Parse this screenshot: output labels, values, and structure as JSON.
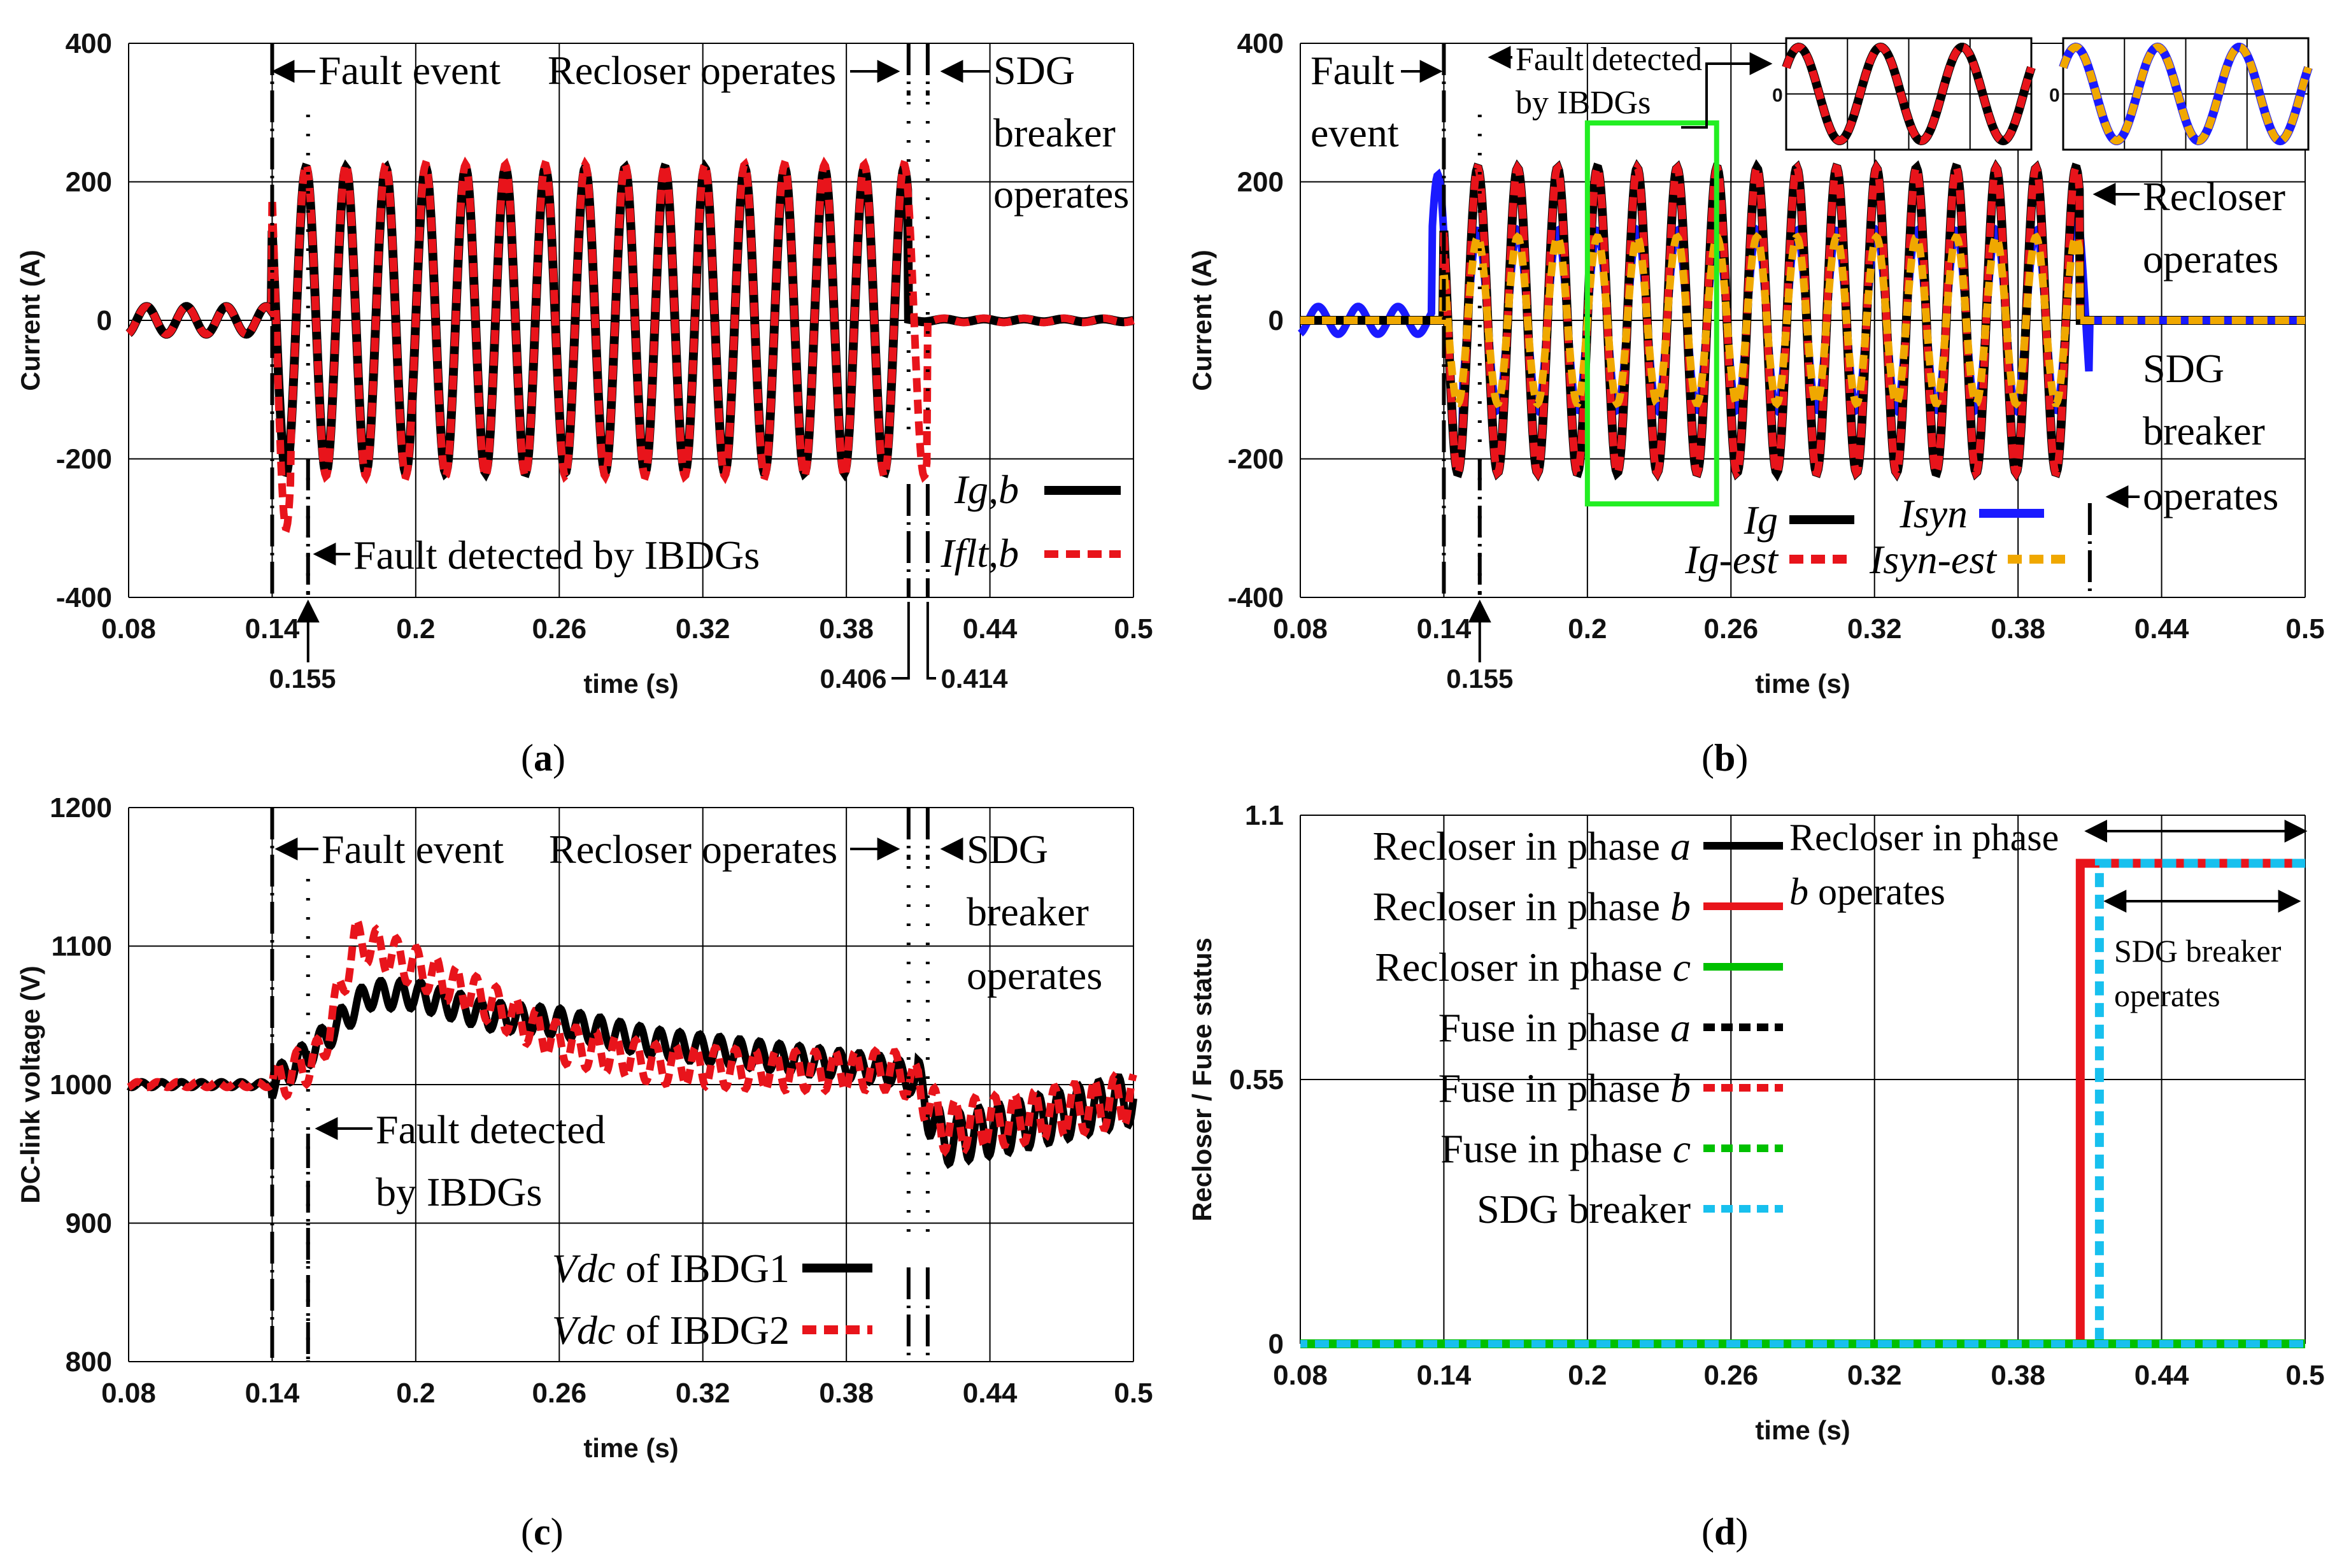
{
  "chart_data": [
    {
      "id": "a",
      "type": "line",
      "panel_label": "(a)",
      "xlabel": "time (s)",
      "ylabel": "Current (A)",
      "xlim": [
        0.08,
        0.5
      ],
      "ylim": [
        -400,
        400
      ],
      "xticks": [
        "0.08",
        "0.14",
        "0.2",
        "0.26",
        "0.32",
        "0.38",
        "0.44",
        "0.5"
      ],
      "yticks": [
        "400",
        "200",
        "0",
        "-200",
        "-400"
      ],
      "extra_xticks": [
        "0.155",
        "0.406",
        "0.414"
      ],
      "grid": true,
      "legend_position": "lower-right",
      "events": [
        0.14,
        0.155,
        0.406,
        0.414
      ],
      "series": [
        {
          "name": "Ig,b",
          "color": "#000000",
          "style": "solid",
          "prefault_amplitude": 20,
          "fault_amplitude": 220,
          "frequency_hz": 60,
          "clears_at": 0.406,
          "peak_at_fault": 200
        },
        {
          "name": "Iflt,b",
          "color": "#e8141b",
          "style": "dashed",
          "prefault_amplitude": 20,
          "fault_amplitude": 225,
          "frequency_hz": 60,
          "clears_at": 0.414,
          "peak_at_fault": 300,
          "trough_at_fault": -300
        }
      ],
      "annotations": [
        "Fault event",
        "Recloser operates",
        "SDG",
        "breaker",
        "operates",
        "Fault detected by IBDGs"
      ]
    },
    {
      "id": "b",
      "type": "line",
      "panel_label": "(b)",
      "xlabel": "time (s)",
      "ylabel": "Current (A)",
      "xlim": [
        0.08,
        0.5
      ],
      "ylim": [
        -400,
        400
      ],
      "xticks": [
        "0.08",
        "0.14",
        "0.2",
        "0.26",
        "0.32",
        "0.38",
        "0.44",
        "0.5"
      ],
      "yticks": [
        "400",
        "200",
        "0",
        "-200",
        "-400"
      ],
      "extra_xticks": [
        "0.155"
      ],
      "grid": true,
      "legend_position": "bottom",
      "series": [
        {
          "name": "Ig",
          "color": "#000000",
          "style": "solid",
          "fault_amplitude": 220,
          "frequency_hz": 60
        },
        {
          "name": "Ig-est",
          "color": "#e8141b",
          "style": "dashed",
          "fault_amplitude": 220,
          "frequency_hz": 60
        },
        {
          "name": "Isyn",
          "color": "#1a1aff",
          "style": "solid",
          "prefault_amplitude": 20,
          "fault_amplitude": 130,
          "frequency_hz": 60,
          "peak_at_fault": 210,
          "peak_at_recloser": 160
        },
        {
          "name": "Isyn-est",
          "color": "#f0a800",
          "style": "dashed",
          "fault_amplitude": 120,
          "frequency_hz": 60
        }
      ],
      "inset_tick": "0",
      "annotations": [
        "Fault",
        "event",
        "Fault detected",
        "by IBDGs",
        "Recloser",
        "operates",
        "SDG",
        "breaker",
        "operates"
      ]
    },
    {
      "id": "c",
      "type": "line",
      "panel_label": "(c)",
      "xlabel": "time (s)",
      "ylabel": "DC-link voltage (V)",
      "xlim": [
        0.08,
        0.5
      ],
      "ylim": [
        800,
        1200
      ],
      "xticks": [
        "0.08",
        "0.14",
        "0.2",
        "0.26",
        "0.32",
        "0.38",
        "0.44",
        "0.5"
      ],
      "yticks": [
        "1200",
        "1100",
        "1000",
        "900",
        "800"
      ],
      "grid": true,
      "legend_position": "lower-right",
      "series": [
        {
          "name": "Vdc of IBDG1",
          "color": "#000000",
          "style": "solid",
          "envelope": [
            [
              0.08,
              1000
            ],
            [
              0.14,
              1000
            ],
            [
              0.16,
              1030
            ],
            [
              0.18,
              1065
            ],
            [
              0.2,
              1065
            ],
            [
              0.23,
              1050
            ],
            [
              0.26,
              1045
            ],
            [
              0.3,
              1030
            ],
            [
              0.35,
              1020
            ],
            [
              0.4,
              1010
            ],
            [
              0.41,
              1000
            ],
            [
              0.42,
              960
            ],
            [
              0.45,
              970
            ],
            [
              0.5,
              990
            ]
          ]
        },
        {
          "name": "Vdc of IBDG2",
          "color": "#e8141b",
          "style": "dashed",
          "envelope": [
            [
              0.08,
              1000
            ],
            [
              0.14,
              1000
            ],
            [
              0.16,
              1020
            ],
            [
              0.175,
              1105
            ],
            [
              0.2,
              1085
            ],
            [
              0.23,
              1060
            ],
            [
              0.26,
              1030
            ],
            [
              0.3,
              1015
            ],
            [
              0.35,
              1010
            ],
            [
              0.4,
              1010
            ],
            [
              0.41,
              1000
            ],
            [
              0.42,
              970
            ],
            [
              0.45,
              975
            ],
            [
              0.5,
              990
            ]
          ]
        }
      ],
      "annotations": [
        "Fault event",
        "Recloser operates",
        "SDG",
        "breaker",
        "operates",
        "Fault detected",
        "by IBDGs"
      ]
    },
    {
      "id": "d",
      "type": "line",
      "panel_label": "(d)",
      "xlabel": "time (s)",
      "ylabel": "Recloser / Fuse status",
      "xlim": [
        0.08,
        0.5
      ],
      "ylim": [
        0,
        1.1
      ],
      "xticks": [
        "0.08",
        "0.14",
        "0.2",
        "0.26",
        "0.32",
        "0.38",
        "0.44",
        "0.5"
      ],
      "yticks": [
        "1.1",
        "0.55",
        "0"
      ],
      "grid": true,
      "legend_position": "upper-left",
      "series": [
        {
          "name": "Recloser in phase",
          "name_italic": "a",
          "color": "#000000",
          "style": "solid",
          "values": [
            [
              0.08,
              0
            ],
            [
              0.5,
              0
            ]
          ]
        },
        {
          "name": "Recloser in phase",
          "name_italic": "b",
          "color": "#e8141b",
          "style": "solid",
          "values": [
            [
              0.08,
              0
            ],
            [
              0.406,
              0
            ],
            [
              0.406,
              1
            ],
            [
              0.5,
              1
            ]
          ]
        },
        {
          "name": "Recloser in phase",
          "name_italic": "c",
          "color": "#00c000",
          "style": "solid",
          "values": [
            [
              0.08,
              0
            ],
            [
              0.5,
              0
            ]
          ]
        },
        {
          "name": "Fuse in phase",
          "name_italic": "a",
          "color": "#000000",
          "style": "dashed",
          "values": [
            [
              0.08,
              0
            ],
            [
              0.5,
              0
            ]
          ]
        },
        {
          "name": "Fuse in phase",
          "name_italic": "b",
          "color": "#e8141b",
          "style": "dashed",
          "values": [
            [
              0.08,
              0
            ],
            [
              0.5,
              0
            ]
          ]
        },
        {
          "name": "Fuse in phase",
          "name_italic": "c",
          "color": "#00c000",
          "style": "dashed",
          "values": [
            [
              0.08,
              0
            ],
            [
              0.5,
              0
            ]
          ]
        },
        {
          "name": "SDG breaker",
          "name_italic": "",
          "color": "#18c0ee",
          "style": "dashed",
          "values": [
            [
              0.08,
              0
            ],
            [
              0.414,
              0
            ],
            [
              0.414,
              1
            ],
            [
              0.5,
              1
            ]
          ]
        }
      ],
      "annotations": [
        "Recloser in phase",
        "b",
        "operates",
        "SDG breaker",
        "operates"
      ]
    }
  ]
}
